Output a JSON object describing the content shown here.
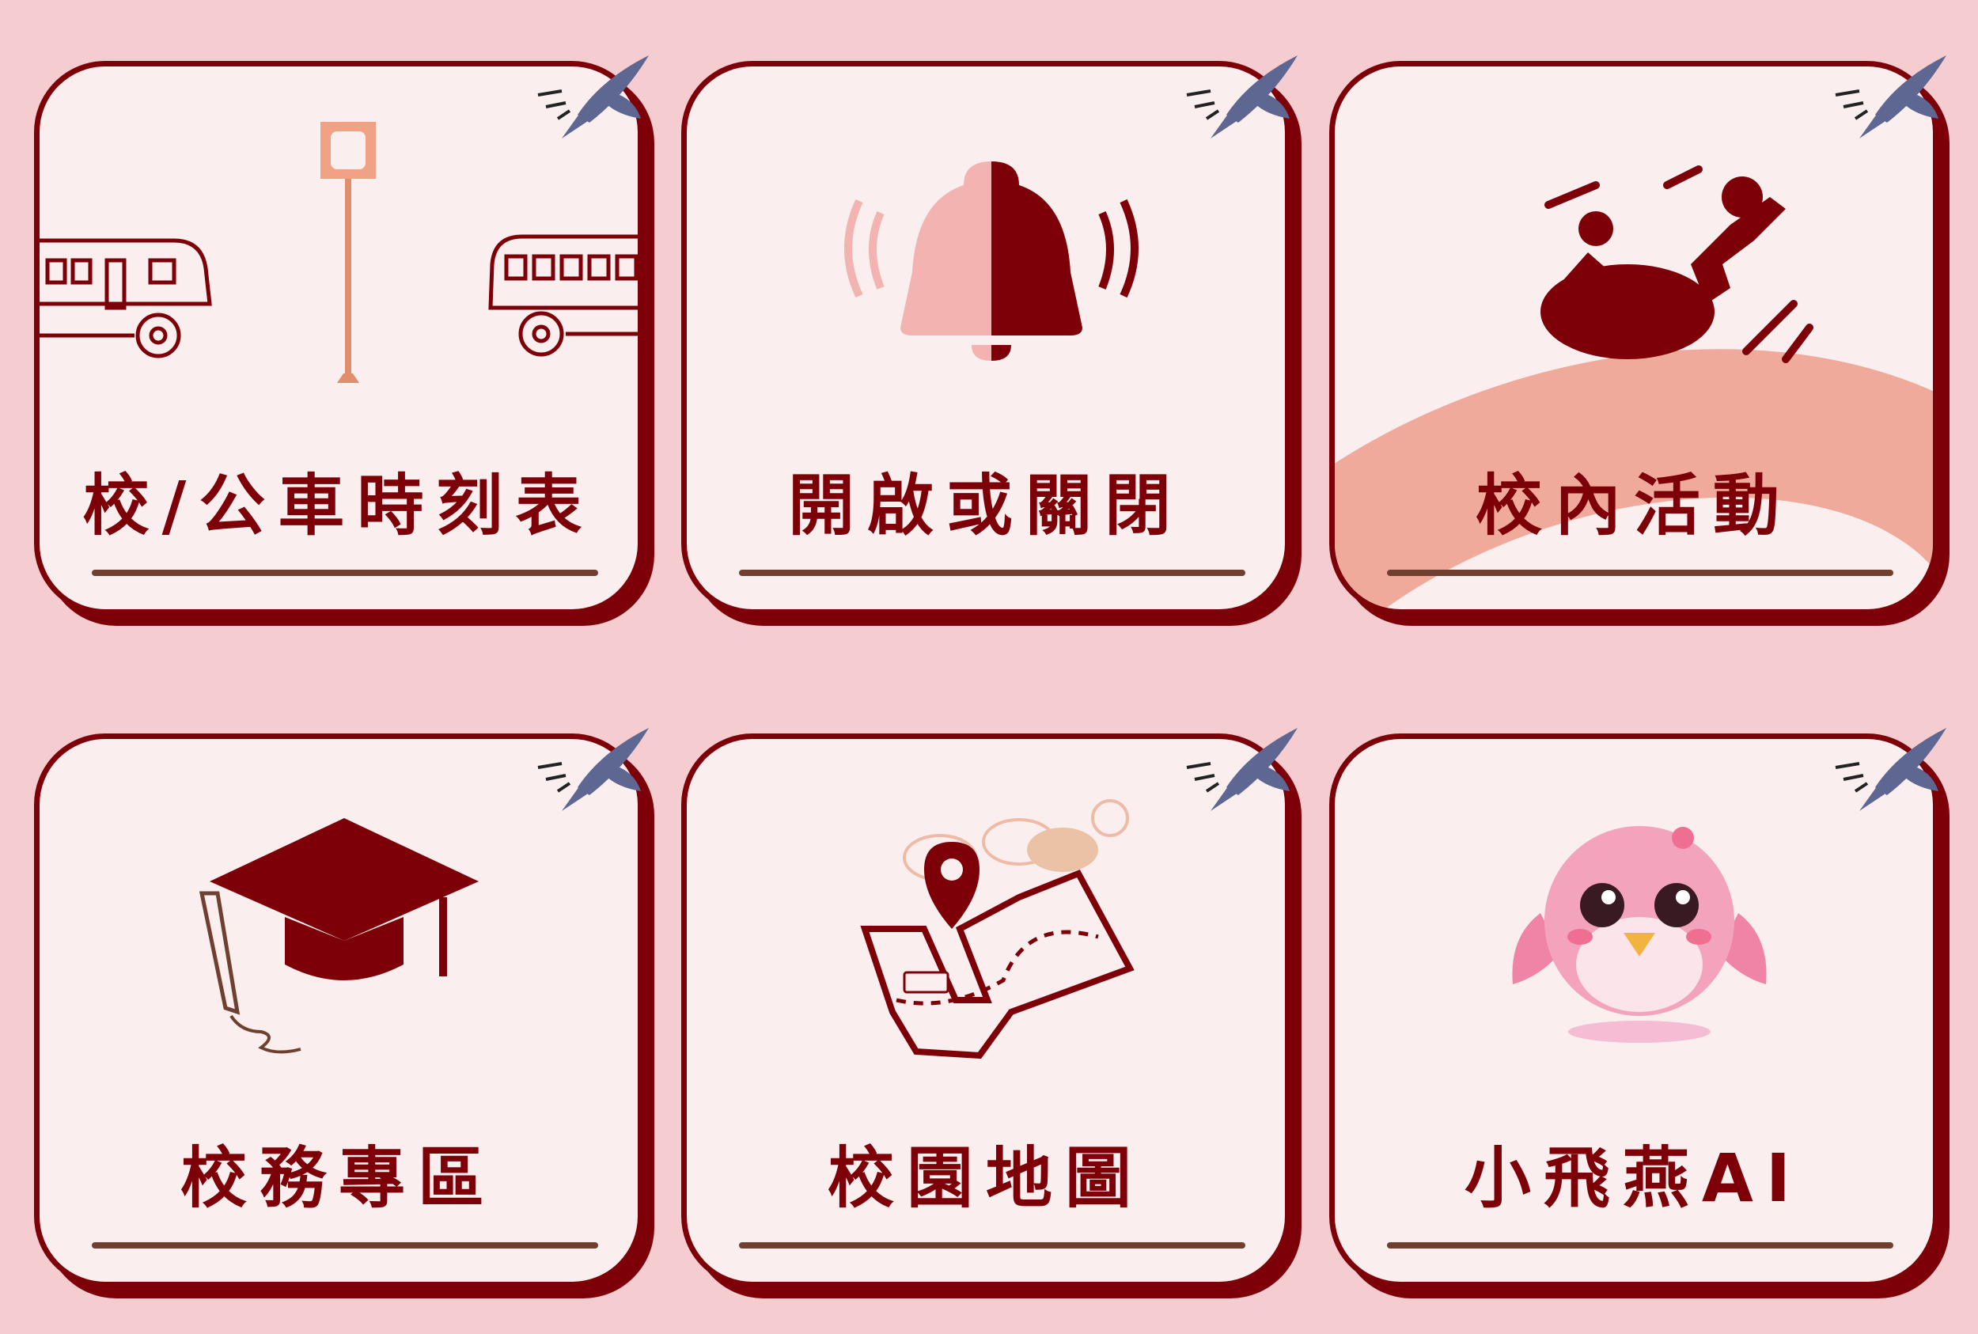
{
  "colors": {
    "background": "#f5cdd1",
    "card": "#fbeeee",
    "accent": "#7d0008",
    "underline": "#6f4030",
    "swallow": "#5e6692"
  },
  "tiles": [
    {
      "label": "校/公車時刻表",
      "icon": "bus-stop-icon"
    },
    {
      "label": "開啟或關閉",
      "icon": "bell-icon"
    },
    {
      "label": "校內活動",
      "icon": "activity-icon"
    },
    {
      "label": "校務專區",
      "icon": "graduation-cap-icon"
    },
    {
      "label": "校園地圖",
      "icon": "map-icon"
    },
    {
      "label": "小飛燕AI",
      "icon": "bird-mascot-icon"
    }
  ]
}
